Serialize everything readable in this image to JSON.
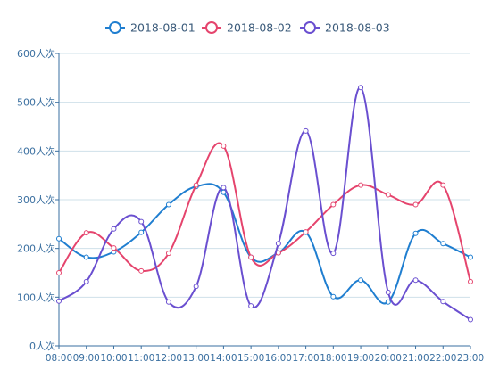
{
  "chart_data": {
    "type": "line",
    "title": "",
    "xlabel": "",
    "ylabel": "",
    "y_unit": "人次",
    "categories": [
      "08:00",
      "09:00",
      "10:00",
      "11:00",
      "12:00",
      "13:00",
      "14:00",
      "15:00",
      "16:00",
      "17:00",
      "18:00",
      "19:00",
      "20:00",
      "21:00",
      "22:00",
      "23:00"
    ],
    "y_ticks": [
      "0人次",
      "100人次",
      "200人次",
      "300人次",
      "400人次",
      "500人次",
      "600人次"
    ],
    "ylim": [
      0,
      600
    ],
    "grid": "horizontal",
    "legend_position": "top-center",
    "smooth": true,
    "series": [
      {
        "name": "2018-08-01",
        "color": "#1f7ed0",
        "values": [
          220,
          182,
          193,
          233,
          290,
          327,
          315,
          182,
          191,
          233,
          101,
          135,
          90,
          231,
          210,
          182
        ]
      },
      {
        "name": "2018-08-02",
        "color": "#e5446d",
        "values": [
          150,
          232,
          201,
          154,
          190,
          330,
          410,
          182,
          191,
          234,
          290,
          330,
          310,
          290,
          330,
          132
        ]
      },
      {
        "name": "2018-08-03",
        "color": "#6a4fd0",
        "values": [
          92,
          132,
          240,
          255,
          90,
          122,
          325,
          82,
          210,
          441,
          190,
          530,
          110,
          135,
          91,
          54
        ]
      }
    ]
  }
}
